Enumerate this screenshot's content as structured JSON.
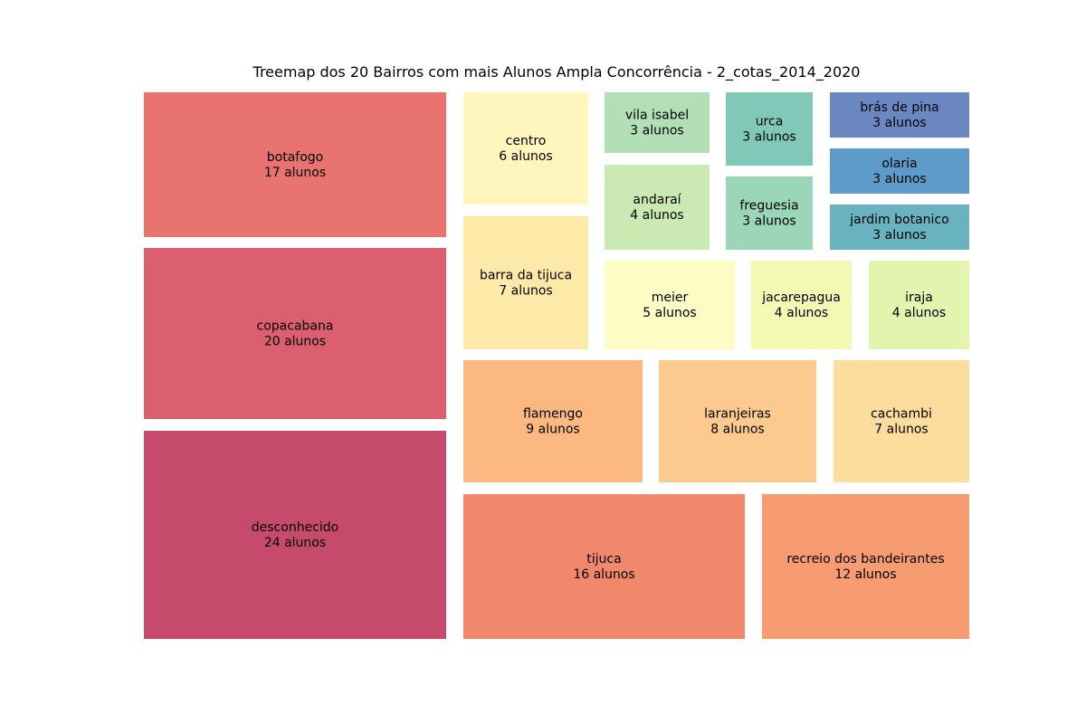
{
  "chart_data": {
    "type": "treemap",
    "title": "Treemap dos 20 Bairros com mais Alunos Ampla Concorrência - 2_cotas_2014_2020",
    "unit_label": "alunos",
    "items": [
      {
        "name": "botafogo",
        "value": 17,
        "label": "17 alunos",
        "color": "#e8736f"
      },
      {
        "name": "copacabana",
        "value": 20,
        "label": "20 alunos",
        "color": "#dc5f6f"
      },
      {
        "name": "desconhecido",
        "value": 24,
        "label": "24 alunos",
        "color": "#c54a6b"
      },
      {
        "name": "centro",
        "value": 6,
        "label": "6 alunos",
        "color": "#fff6be"
      },
      {
        "name": "barra da tijuca",
        "value": 7,
        "label": "7 alunos",
        "color": "#feeaa8"
      },
      {
        "name": "vila isabel",
        "value": 3,
        "label": "3 alunos",
        "color": "#b2dfb5"
      },
      {
        "name": "andaraí",
        "value": 4,
        "label": "4 alunos",
        "color": "#cbe9b2"
      },
      {
        "name": "urca",
        "value": 3,
        "label": "3 alunos",
        "color": "#82c8b8"
      },
      {
        "name": "freguesia",
        "value": 3,
        "label": "3 alunos",
        "color": "#9bd6b9"
      },
      {
        "name": "brás de pina",
        "value": 3,
        "label": "3 alunos",
        "color": "#6b87c1"
      },
      {
        "name": "olaria",
        "value": 3,
        "label": "3 alunos",
        "color": "#5d9cca"
      },
      {
        "name": "jardim botanico",
        "value": 3,
        "label": "3 alunos",
        "color": "#69b2c0"
      },
      {
        "name": "meier",
        "value": 5,
        "label": "5 alunos",
        "color": "#fcfcc4"
      },
      {
        "name": "jacarepagua",
        "value": 4,
        "label": "4 alunos",
        "color": "#f1f9b3"
      },
      {
        "name": "iraja",
        "value": 4,
        "label": "4 alunos",
        "color": "#e3f4ae"
      },
      {
        "name": "flamengo",
        "value": 9,
        "label": "9 alunos",
        "color": "#fbb880"
      },
      {
        "name": "laranjeiras",
        "value": 8,
        "label": "8 alunos",
        "color": "#fcca8e"
      },
      {
        "name": "cachambi",
        "value": 7,
        "label": "7 alunos",
        "color": "#fddd9d"
      },
      {
        "name": "tijuca",
        "value": 16,
        "label": "16 alunos",
        "color": "#f2886b"
      },
      {
        "name": "recreio dos bandeirantes",
        "value": 12,
        "label": "12 alunos",
        "color": "#f79b72"
      }
    ]
  }
}
